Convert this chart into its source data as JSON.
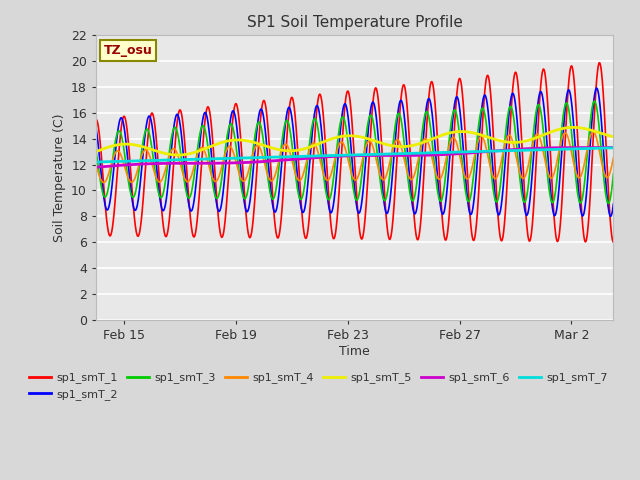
{
  "title": "SP1 Soil Temperature Profile",
  "xlabel": "Time",
  "ylabel": "Soil Temperature (C)",
  "annotation": "TZ_osu",
  "ylim": [
    0,
    22
  ],
  "yticks": [
    0,
    2,
    4,
    6,
    8,
    10,
    12,
    14,
    16,
    18,
    20,
    22
  ],
  "bg_color": "#d8d8d8",
  "plot_bg_color": "#e8e8e8",
  "xtick_dates": [
    "Feb 15",
    "Feb 19",
    "Feb 23",
    "Feb 27",
    "Mar 2"
  ],
  "xtick_offsets_days": [
    1,
    5,
    9,
    13,
    17
  ],
  "total_days": 18.5,
  "series": [
    {
      "name": "sp1_smT_1",
      "color": "#ff0000",
      "type": "osc",
      "amp_start": 4.5,
      "amp_end": 7.0,
      "mean_start": 11.0,
      "mean_end": 13.0,
      "phase": 1.57,
      "lw": 1.2
    },
    {
      "name": "sp1_smT_2",
      "color": "#0000ff",
      "type": "osc",
      "amp_start": 3.5,
      "amp_end": 5.0,
      "mean_start": 12.0,
      "mean_end": 13.0,
      "phase": 2.2,
      "lw": 1.2
    },
    {
      "name": "sp1_smT_3",
      "color": "#00cc00",
      "type": "osc",
      "amp_start": 2.5,
      "amp_end": 4.0,
      "mean_start": 12.0,
      "mean_end": 13.0,
      "phase": 2.7,
      "lw": 1.2
    },
    {
      "name": "sp1_smT_4",
      "color": "#ff8800",
      "type": "osc",
      "amp_start": 1.2,
      "amp_end": 1.8,
      "mean_start": 11.8,
      "mean_end": 12.8,
      "phase": 3.0,
      "lw": 1.2
    },
    {
      "name": "sp1_smT_5",
      "color": "#eeee00",
      "type": "smooth",
      "val_start": 13.0,
      "val_end": 14.5,
      "wave_amp": 0.5,
      "wave_period_days": 4,
      "lw": 2.0
    },
    {
      "name": "sp1_smT_6",
      "color": "#cc00cc",
      "type": "smooth",
      "val_start": 11.8,
      "val_end": 13.4,
      "wave_amp": 0.1,
      "wave_period_days": 7,
      "lw": 2.0
    },
    {
      "name": "sp1_smT_7",
      "color": "#00dddd",
      "type": "smooth",
      "val_start": 12.2,
      "val_end": 13.3,
      "wave_amp": 0.0,
      "wave_period_days": 7,
      "lw": 2.0
    }
  ]
}
